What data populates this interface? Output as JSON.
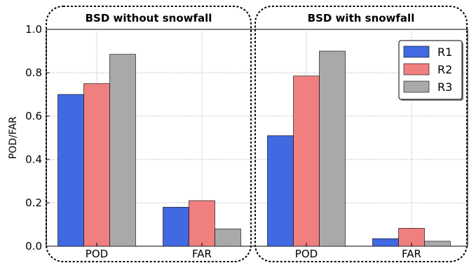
{
  "chart_data": {
    "type": "bar",
    "ylabel": "POD/FAR",
    "ylim": [
      0,
      1.0
    ],
    "yticks": [
      "0.0",
      "0.2",
      "0.4",
      "0.6",
      "0.8",
      "1.0"
    ],
    "grid": true,
    "legend": {
      "placement": "top-right",
      "entries": [
        "R1",
        "R2",
        "R3"
      ]
    },
    "colors": {
      "R1": "#4169e1",
      "R2": "#f08080",
      "R3": "#a9a9a9"
    },
    "panels": [
      {
        "title": "BSD without snowfall",
        "categories": [
          "POD",
          "FAR"
        ],
        "series": [
          {
            "name": "R1",
            "values": [
              0.7,
              0.18
            ]
          },
          {
            "name": "R2",
            "values": [
              0.75,
              0.21
            ]
          },
          {
            "name": "R3",
            "values": [
              0.885,
              0.08
            ]
          }
        ]
      },
      {
        "title": "BSD with snowfall",
        "categories": [
          "POD",
          "FAR"
        ],
        "series": [
          {
            "name": "R1",
            "values": [
              0.51,
              0.035
            ]
          },
          {
            "name": "R2",
            "values": [
              0.785,
              0.083
            ]
          },
          {
            "name": "R3",
            "values": [
              0.9,
              0.023
            ]
          }
        ]
      }
    ]
  }
}
